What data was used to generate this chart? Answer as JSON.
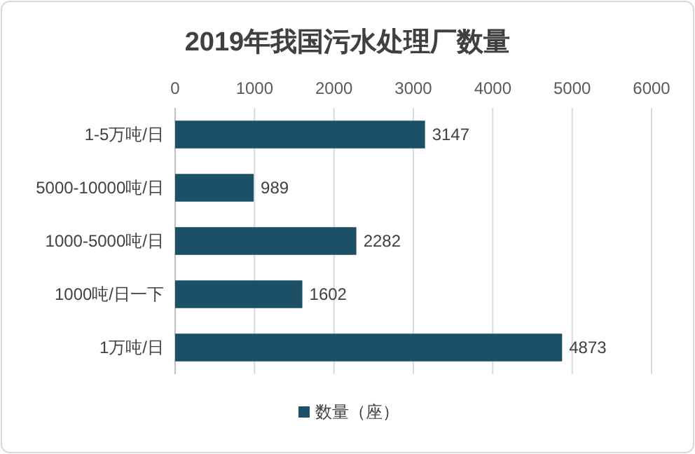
{
  "chart_data": {
    "type": "bar",
    "orientation": "horizontal",
    "title": "2019年我国污水处理厂数量",
    "categories": [
      "1-5万吨/日",
      "5000-10000吨/日",
      "1000-5000吨/日",
      "1000吨/日一下",
      "1万吨/日"
    ],
    "series": [
      {
        "name": "数量（座）",
        "color": "#1b5066",
        "values": [
          3147,
          989,
          2282,
          1602,
          4873
        ]
      }
    ],
    "xlim": [
      0,
      6000
    ],
    "xticks": [
      0,
      1000,
      2000,
      3000,
      4000,
      5000,
      6000
    ],
    "grid": "x",
    "legend": "bottom",
    "data_labels": true
  }
}
